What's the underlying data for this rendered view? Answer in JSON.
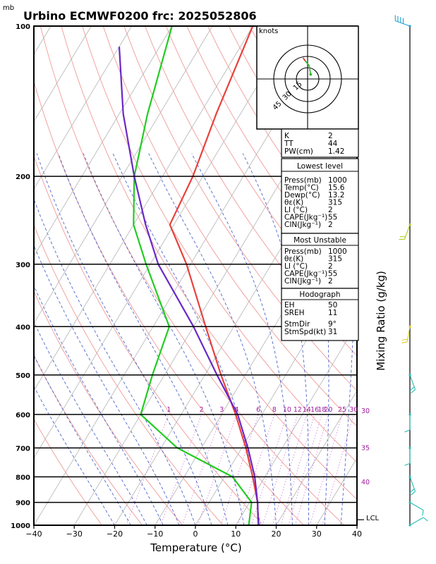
{
  "title": "Urbino ECMWF0200  frc: 2025052806",
  "corner_unit": "mb",
  "xlabel": "Temperature (°C)",
  "right_label": "Mixing Ratio (g/kg)",
  "lcl_label": "LCL",
  "hodograph": {
    "units": "knots",
    "ring_labels": [
      "15",
      "30",
      "45"
    ]
  },
  "index_box": {
    "rows": [
      {
        "label": "K",
        "value": "2"
      },
      {
        "label": "TT",
        "value": "44"
      },
      {
        "label": "PW(cm)",
        "value": "1.42"
      }
    ]
  },
  "lowest_level": {
    "header": "Lowest level",
    "rows": [
      {
        "label": "Press(mb)",
        "value": "1000"
      },
      {
        "label": "Temp(°C)",
        "value": "15.6"
      },
      {
        "label": "Dewp(°C)",
        "value": "13.2"
      },
      {
        "label": "θε(K)",
        "value": "315"
      },
      {
        "label": "LI (°C)",
        "value": "2"
      },
      {
        "label": "CAPE(Jkg⁻¹)",
        "value": "55"
      },
      {
        "label": "CIN(Jkg⁻¹)",
        "value": "2"
      }
    ]
  },
  "most_unstable": {
    "header": "Most Unstable",
    "rows": [
      {
        "label": "Press(mb)",
        "value": "1000"
      },
      {
        "label": "θε(K)",
        "value": "315"
      },
      {
        "label": "LI (°C)",
        "value": "2"
      },
      {
        "label": "CAPE(Jkg⁻¹)",
        "value": "55"
      },
      {
        "label": "CIN(Jkg⁻¹)",
        "value": "2"
      }
    ]
  },
  "hodograph_box": {
    "header": "Hodograph",
    "rows": [
      {
        "label": "EH",
        "value": "50"
      },
      {
        "label": "SREH",
        "value": "11"
      },
      {
        "label": "StmDir",
        "value": "9°"
      },
      {
        "label": "StmSpd(kt)",
        "value": "31"
      }
    ]
  },
  "chart_data": {
    "type": "skew-t log-p sounding",
    "title": "Urbino ECMWF0200  frc: 2025052806",
    "xlabel": "Temperature (°C)",
    "ylabel": "mb",
    "x_ticks": [
      "−40",
      "−30",
      "−20",
      "−10",
      "0",
      "10",
      "20",
      "30",
      "40"
    ],
    "xlim": [
      -40,
      40
    ],
    "pressure_ticks": [
      "100",
      "200",
      "300",
      "400",
      "500",
      "600",
      "700",
      "800",
      "900",
      "1000"
    ],
    "ylim": [
      1000,
      100
    ],
    "y_scale": "log",
    "mixing_ratio_labels": [
      "1",
      "2",
      "3",
      "4",
      "6",
      "8",
      "10",
      "12",
      "14",
      "16",
      "18",
      "20",
      "25",
      "30"
    ],
    "theta_e_labels": [
      "30",
      "35",
      "40"
    ],
    "series": [
      {
        "name": "Temperature",
        "color": "#e8413c",
        "points": [
          {
            "p": 1000,
            "t": 15.6
          },
          {
            "p": 900,
            "t": 12.0
          },
          {
            "p": 800,
            "t": 7.0
          },
          {
            "p": 700,
            "t": 1.0
          },
          {
            "p": 600,
            "t": -6.5
          },
          {
            "p": 500,
            "t": -16.0
          },
          {
            "p": 400,
            "t": -27.0
          },
          {
            "p": 300,
            "t": -41.0
          },
          {
            "p": 250,
            "t": -51.0
          },
          {
            "p": 200,
            "t": -52.5
          },
          {
            "p": 150,
            "t": -56.0
          },
          {
            "p": 100,
            "t": -60.0
          }
        ]
      },
      {
        "name": "Dewpoint",
        "color": "#22cc22",
        "points": [
          {
            "p": 1000,
            "t": 13.2
          },
          {
            "p": 900,
            "t": 10.5
          },
          {
            "p": 800,
            "t": 2.0
          },
          {
            "p": 700,
            "t": -16.0
          },
          {
            "p": 600,
            "t": -30.0
          },
          {
            "p": 500,
            "t": -33.0
          },
          {
            "p": 400,
            "t": -36.0
          },
          {
            "p": 300,
            "t": -51.0
          },
          {
            "p": 250,
            "t": -60.0
          },
          {
            "p": 200,
            "t": -67.0
          },
          {
            "p": 150,
            "t": -73.0
          },
          {
            "p": 100,
            "t": -80.0
          }
        ]
      },
      {
        "name": "Parcel",
        "color": "#6a28c8",
        "points": [
          {
            "p": 1000,
            "t": 15.6
          },
          {
            "p": 950,
            "t": 13.8
          },
          {
            "p": 900,
            "t": 12.0
          },
          {
            "p": 800,
            "t": 7.5
          },
          {
            "p": 700,
            "t": 1.5
          },
          {
            "p": 600,
            "t": -6.0
          },
          {
            "p": 500,
            "t": -17.0
          },
          {
            "p": 400,
            "t": -30.0
          },
          {
            "p": 300,
            "t": -48.0
          },
          {
            "p": 250,
            "t": -57.0
          },
          {
            "p": 200,
            "t": -67.0
          },
          {
            "p": 150,
            "t": -79.0
          },
          {
            "p": 110,
            "t": -90.0
          }
        ]
      }
    ],
    "hodograph_points_kt": [
      [
        4,
        -6
      ],
      [
        2,
        -18
      ],
      [
        -4,
        -25
      ],
      [
        -6,
        -28
      ],
      [
        -3,
        -24
      ]
    ],
    "wind_barbs": [
      {
        "p": 100,
        "dir": 290,
        "spd": 40
      },
      {
        "p": 250,
        "dir": 200,
        "spd": 20
      },
      {
        "p": 400,
        "dir": 190,
        "spd": 15
      },
      {
        "p": 500,
        "dir": 160,
        "spd": 20
      },
      {
        "p": 600,
        "dir": 180,
        "spd": 10
      },
      {
        "p": 700,
        "dir": 180,
        "spd": 10
      },
      {
        "p": 800,
        "dir": 160,
        "spd": 15
      },
      {
        "p": 900,
        "dir": 120,
        "spd": 10
      },
      {
        "p": 1000,
        "dir": 60,
        "spd": 5
      }
    ]
  }
}
